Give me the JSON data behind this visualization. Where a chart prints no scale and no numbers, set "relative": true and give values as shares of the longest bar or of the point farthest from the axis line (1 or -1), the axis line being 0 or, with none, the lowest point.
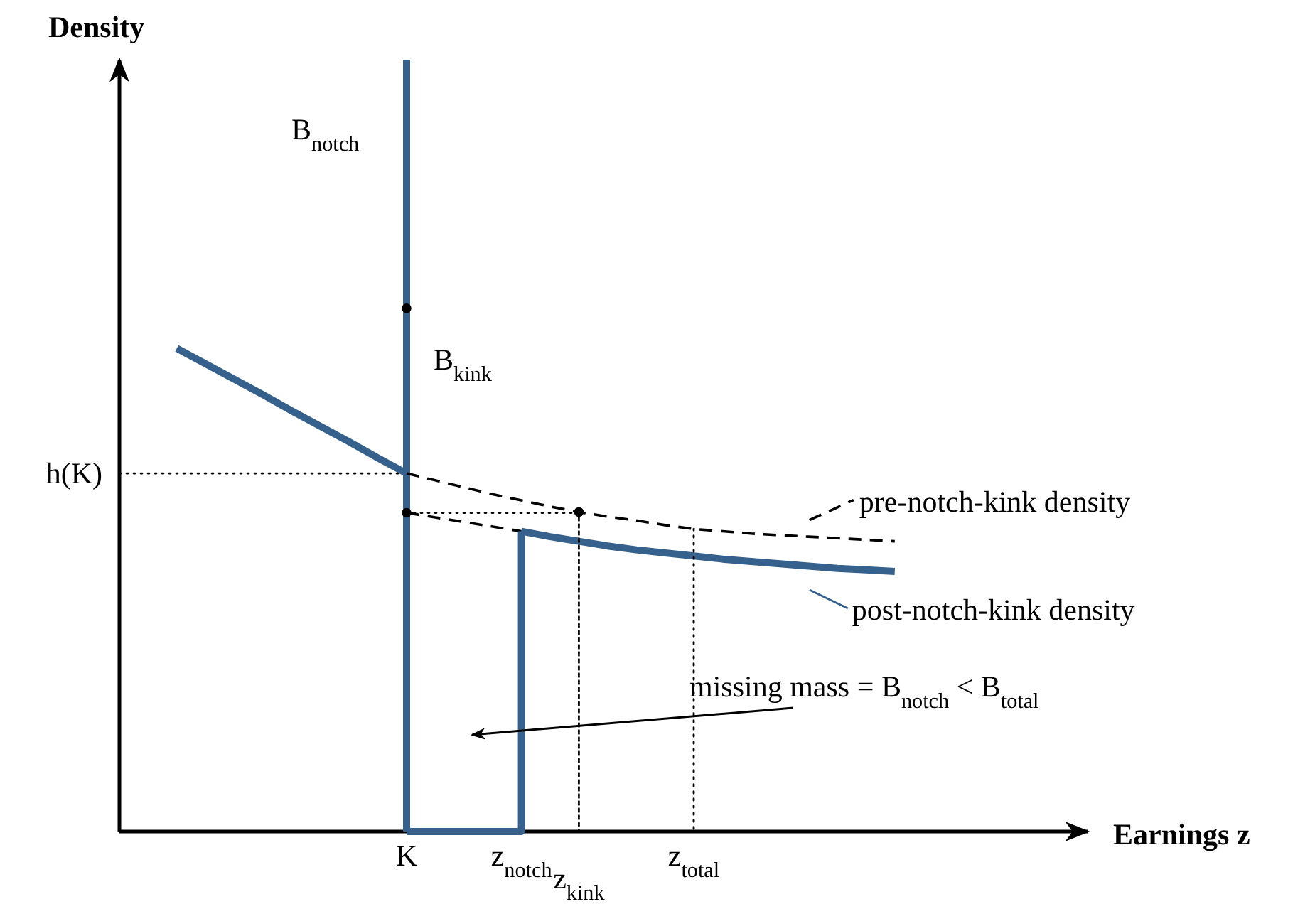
{
  "chart_data": {
    "type": "line",
    "relative": true,
    "legend": "right",
    "ref_lines": [
      {
        "axis": "y",
        "value": 0.464,
        "label": "h(K)",
        "line_style": "dotted",
        "color": "#000000"
      }
    ],
    "xlabel": "Earnings z",
    "ylabel": "Density",
    "tick_labels": "x",
    "categories": [
      null,
      null,
      null,
      null,
      null,
      null,
      null,
      null,
      null,
      null,
      "K",
      null,
      null,
      null,
      "z$_{notch}$",
      null,
      "z$_{kink}$",
      null,
      null,
      null,
      "z$_{total}$",
      null,
      null,
      null,
      null,
      null,
      null,
      null,
      null,
      null,
      null,
      null,
      null,
      null
    ],
    "series": [
      {
        "type": "bar",
        "color": "#36618c",
        "values": [
          null,
          null,
          null,
          null,
          null,
          null,
          null,
          null,
          null,
          null,
          1,
          null,
          null,
          null,
          null,
          null,
          null,
          null,
          null,
          null,
          null,
          null,
          null,
          null,
          null,
          null,
          null,
          null,
          null,
          null,
          null,
          null,
          null,
          null
        ]
      },
      {
        "line_style": "solid",
        "color": "#36618c",
        "values": [
          null,
          null,
          0.626,
          0.606,
          0.586,
          0.566,
          0.545,
          0.525,
          0.505,
          0.484,
          0.464,
          null,
          null,
          null,
          null,
          null,
          null,
          null,
          null,
          null,
          null,
          null,
          null,
          null,
          null,
          null,
          null,
          null,
          null,
          null,
          null,
          null,
          null,
          null
        ]
      },
      {
        "type": "step",
        "line_style": "solid",
        "color": "#36618c",
        "values": [
          null,
          null,
          null,
          null,
          null,
          null,
          null,
          null,
          null,
          null,
          0,
          0,
          0,
          0,
          0.389,
          null,
          null,
          null,
          null,
          null,
          null,
          null,
          null,
          null,
          null,
          null,
          null,
          null,
          null,
          null,
          null,
          null,
          null,
          null
        ]
      },
      {
        "name": "post-notch-kink density",
        "line_style": "solid",
        "color": "#36618c",
        "values": [
          null,
          null,
          null,
          null,
          null,
          null,
          null,
          null,
          null,
          null,
          null,
          null,
          null,
          null,
          0.389,
          0.382,
          0.376,
          0.37,
          0.365,
          0.361,
          0.357,
          0.353,
          0.35,
          0.347,
          0.344,
          0.341,
          0.339,
          0.337,
          null,
          null,
          null,
          null,
          null,
          null
        ]
      },
      {
        "name": "pre-notch-kink density",
        "line_style": "dashed",
        "color": "#000000",
        "values": [
          null,
          null,
          null,
          null,
          null,
          null,
          null,
          null,
          null,
          null,
          0.464,
          0.455,
          0.446,
          0.437,
          0.429,
          0.421,
          0.414,
          0.408,
          0.403,
          0.397,
          0.392,
          0.389,
          0.386,
          0.384,
          0.382,
          0.38,
          0.378,
          0.376,
          null,
          null,
          null,
          null,
          null,
          null
        ]
      },
      {
        "line_style": "dashed",
        "color": "#000000",
        "values": [
          null,
          null,
          null,
          null,
          null,
          null,
          null,
          null,
          null,
          null,
          0.413,
          0.407,
          0.401,
          0.395,
          0.389,
          null,
          null,
          null,
          null,
          null,
          null,
          null,
          null,
          null,
          null,
          null,
          null,
          null,
          null,
          null,
          null,
          null,
          null,
          null
        ]
      },
      {
        "line_style": "dotted",
        "color": "#000000",
        "values": [
          null,
          null,
          null,
          null,
          null,
          null,
          null,
          null,
          null,
          null,
          0.413,
          0.413,
          0.413,
          0.413,
          0.413,
          0.413,
          0.413,
          null,
          null,
          null,
          null,
          null,
          null,
          null,
          null,
          null,
          null,
          null,
          null,
          null,
          null,
          null,
          null,
          null
        ]
      },
      {
        "type": "bar",
        "line_style": "dotted",
        "color": "#000000",
        "values": [
          null,
          null,
          null,
          null,
          null,
          null,
          null,
          null,
          null,
          null,
          null,
          null,
          null,
          null,
          null,
          null,
          0.414,
          null,
          null,
          null,
          0.392,
          null,
          null,
          null,
          null,
          null,
          null,
          null,
          null,
          null,
          null,
          null,
          null,
          null
        ]
      },
      {
        "type": "scatter",
        "marker": "circle",
        "color": "#000000",
        "x": [
          "K",
          "K",
          "z$_{kink}$"
        ],
        "values": [
          0.678,
          0.413,
          0.414
        ]
      }
    ],
    "annotations": [
      "B$_{notch}$",
      "B$_{kink}$",
      "missing mass = B$_{notch}$ < B$_{total}$"
    ]
  }
}
